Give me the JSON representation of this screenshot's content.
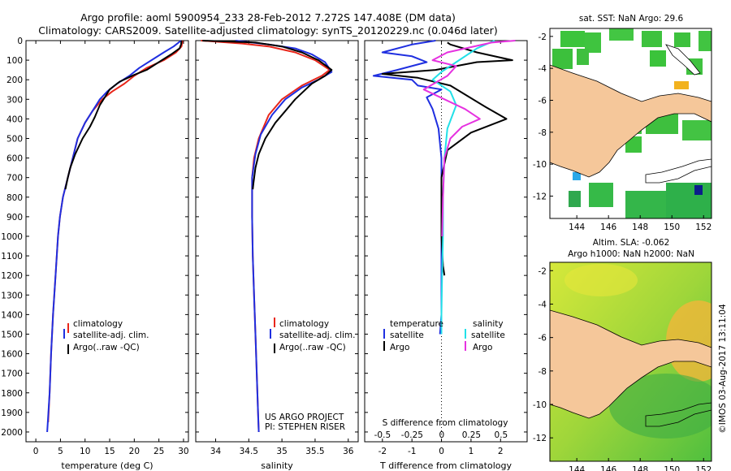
{
  "title_line1": "Argo profile: aoml 5900954_233 28-Feb-2012 7.272S 147.408E (DM data)",
  "title_line2": "Climatology: CARS2009. Satellite-adjusted climatology: synTS_20120229.nc (0.046d later)",
  "sst_title": "sat. SST: NaN Argo: 29.6",
  "sla_title1": "Altim. SLA: -0.062",
  "sla_title2": "Argo h1000: NaN h2000: NaN",
  "credit": "©IMOS 03-Aug-2017 13:11:04",
  "project_line1": "US ARGO PROJECT",
  "project_line2": "PI: STEPHEN RISER",
  "colors": {
    "climatology": "#e8261a",
    "satellite": "#1f2fe0",
    "argo": "#000000",
    "sat_s": "#22e0e8",
    "argo_s": "#e632e0",
    "land": "#f5c79a"
  },
  "chart_data": [
    {
      "type": "line",
      "name": "temperature",
      "xlabel": "temperature (deg C)",
      "xlim": [
        -2,
        31
      ],
      "xticks": [
        "0",
        "5",
        "10",
        "15",
        "20",
        "25",
        "30"
      ],
      "ylim": [
        0,
        2050
      ],
      "yticks": [
        "0",
        "100",
        "200",
        "300",
        "400",
        "500",
        "600",
        "700",
        "800",
        "900",
        "1000",
        "1100",
        "1200",
        "1300",
        "1400",
        "1500",
        "1600",
        "1700",
        "1800",
        "1900",
        "2000"
      ],
      "legend": [
        "climatology",
        "satellite-adj. clim.",
        "Argo(..raw -QC)"
      ],
      "series": [
        {
          "name": "climatology",
          "color": "#e8261a",
          "points": [
            [
              29.8,
              0
            ],
            [
              29.6,
              30
            ],
            [
              28.5,
              60
            ],
            [
              26,
              100
            ],
            [
              22.5,
              140
            ],
            [
              20,
              180
            ],
            [
              18,
              220
            ],
            [
              15.5,
              260
            ],
            [
              13.5,
              300
            ],
            [
              11.5,
              360
            ],
            [
              10,
              420
            ],
            [
              8.5,
              500
            ],
            [
              7.5,
              600
            ],
            [
              6.5,
              700
            ],
            [
              5.5,
              800
            ],
            [
              4.9,
              900
            ],
            [
              4.5,
              1000
            ],
            [
              4,
              1200
            ],
            [
              3.5,
              1400
            ],
            [
              3.1,
              1600
            ],
            [
              2.8,
              1800
            ],
            [
              2.5,
              1950
            ]
          ]
        },
        {
          "name": "satellite",
          "color": "#1f2fe0",
          "points": [
            [
              29.5,
              0
            ],
            [
              28,
              30
            ],
            [
              26,
              60
            ],
            [
              23.5,
              100
            ],
            [
              21,
              140
            ],
            [
              19,
              180
            ],
            [
              16.5,
              220
            ],
            [
              14.5,
              260
            ],
            [
              13,
              300
            ],
            [
              11.5,
              360
            ],
            [
              10,
              420
            ],
            [
              8.5,
              500
            ],
            [
              7.5,
              600
            ],
            [
              6.5,
              700
            ],
            [
              5.5,
              800
            ],
            [
              4.9,
              900
            ],
            [
              4.5,
              1000
            ],
            [
              4,
              1200
            ],
            [
              3.5,
              1400
            ],
            [
              3.1,
              1600
            ],
            [
              2.8,
              1800
            ],
            [
              2.3,
              2000
            ]
          ]
        },
        {
          "name": "argo",
          "color": "#000000",
          "points": [
            [
              29.6,
              0
            ],
            [
              29.5,
              20
            ],
            [
              29.2,
              40
            ],
            [
              27.5,
              70
            ],
            [
              25,
              110
            ],
            [
              22.5,
              150
            ],
            [
              20,
              175
            ],
            [
              17,
              210
            ],
            [
              15,
              250
            ],
            [
              14,
              290
            ],
            [
              13,
              330
            ],
            [
              12,
              390
            ],
            [
              11,
              440
            ],
            [
              9.5,
              500
            ],
            [
              8,
              580
            ],
            [
              7,
              650
            ],
            [
              6.5,
              700
            ],
            [
              6,
              760
            ]
          ]
        }
      ]
    },
    {
      "type": "line",
      "name": "salinity",
      "xlabel": "salinity",
      "xlim": [
        33.7,
        36.15
      ],
      "xticks": [
        "34",
        "34.5",
        "35",
        "35.5",
        "36"
      ],
      "ylim": [
        0,
        2050
      ],
      "legend": [
        "climatology",
        "satellite-adj. clim.",
        "Argo(..raw -QC)"
      ],
      "series": [
        {
          "name": "climatology",
          "color": "#e8261a",
          "points": [
            [
              33.78,
              0
            ],
            [
              34.0,
              5
            ],
            [
              34.4,
              15
            ],
            [
              34.8,
              30
            ],
            [
              35.2,
              60
            ],
            [
              35.5,
              100
            ],
            [
              35.72,
              150
            ],
            [
              35.6,
              180
            ],
            [
              35.3,
              230
            ],
            [
              35.0,
              300
            ],
            [
              34.8,
              380
            ],
            [
              34.65,
              500
            ],
            [
              34.58,
              600
            ],
            [
              34.55,
              700
            ],
            [
              34.55,
              900
            ],
            [
              34.56,
              1100
            ],
            [
              34.58,
              1300
            ],
            [
              34.6,
              1500
            ],
            [
              34.62,
              1700
            ],
            [
              34.64,
              1900
            ],
            [
              34.65,
              2000
            ]
          ]
        },
        {
          "name": "satellite",
          "color": "#1f2fe0",
          "points": [
            [
              34.3,
              0
            ],
            [
              34.8,
              20
            ],
            [
              35.2,
              40
            ],
            [
              35.45,
              70
            ],
            [
              35.65,
              110
            ],
            [
              35.75,
              160
            ],
            [
              35.55,
              200
            ],
            [
              35.3,
              240
            ],
            [
              35.05,
              300
            ],
            [
              34.85,
              380
            ],
            [
              34.68,
              480
            ],
            [
              34.6,
              580
            ],
            [
              34.55,
              700
            ],
            [
              34.55,
              900
            ],
            [
              34.56,
              1100
            ],
            [
              34.58,
              1300
            ],
            [
              34.6,
              1500
            ],
            [
              34.62,
              1700
            ],
            [
              34.64,
              1900
            ],
            [
              34.65,
              2000
            ]
          ]
        },
        {
          "name": "argo",
          "color": "#000000",
          "points": [
            [
              33.8,
              0
            ],
            [
              34.6,
              10
            ],
            [
              35.0,
              30
            ],
            [
              35.3,
              60
            ],
            [
              35.55,
              100
            ],
            [
              35.75,
              150
            ],
            [
              35.65,
              180
            ],
            [
              35.45,
              220
            ],
            [
              35.2,
              300
            ],
            [
              35.05,
              360
            ],
            [
              34.9,
              420
            ],
            [
              34.75,
              500
            ],
            [
              34.65,
              580
            ],
            [
              34.6,
              650
            ],
            [
              34.57,
              730
            ],
            [
              34.56,
              760
            ]
          ]
        }
      ]
    },
    {
      "type": "line",
      "name": "difference",
      "xlabel": "T difference from climatology",
      "xlabel_top": "S difference from climatology",
      "xlim": [
        -2.6,
        2.9
      ],
      "xticks": [
        "-2",
        "-1",
        "0",
        "1",
        "2"
      ],
      "xticks_s": [
        "-0.5",
        "-0.25",
        "0",
        "0.25",
        "0.5"
      ],
      "ylim": [
        0,
        2050
      ],
      "legend_t": [
        "temperature",
        "satellite",
        "Argo"
      ],
      "legend_s": [
        "salinity",
        "satellite",
        "Argo"
      ],
      "series": [
        {
          "name": "T satellite",
          "color": "#1f2fe0",
          "points": [
            [
              -0.2,
              0
            ],
            [
              -1.0,
              20
            ],
            [
              -2.0,
              60
            ],
            [
              -1.0,
              80
            ],
            [
              -0.5,
              110
            ],
            [
              -1.5,
              150
            ],
            [
              -2.3,
              180
            ],
            [
              -1.0,
              200
            ],
            [
              -0.8,
              230
            ],
            [
              0.0,
              250
            ],
            [
              -0.5,
              290
            ],
            [
              -0.3,
              350
            ],
            [
              -0.1,
              450
            ],
            [
              0,
              600
            ],
            [
              0,
              800
            ],
            [
              0,
              1000
            ],
            [
              0,
              1200
            ],
            [
              0,
              1400
            ],
            [
              -0.05,
              1500
            ]
          ]
        },
        {
          "name": "T argo",
          "color": "#000000",
          "points": [
            [
              0.2,
              10
            ],
            [
              0.3,
              20
            ],
            [
              1.2,
              60
            ],
            [
              2.4,
              100
            ],
            [
              1.2,
              110
            ],
            [
              -0.2,
              150
            ],
            [
              -2.0,
              170
            ],
            [
              -0.8,
              190
            ],
            [
              0.3,
              230
            ],
            [
              1.5,
              340
            ],
            [
              2.2,
              400
            ],
            [
              1.0,
              470
            ],
            [
              0.2,
              560
            ],
            [
              0,
              700
            ],
            [
              0,
              900
            ],
            [
              0,
              1000
            ],
            [
              0.05,
              1150
            ],
            [
              0.1,
              1200
            ]
          ]
        },
        {
          "name": "S satellite",
          "color": "#22e0e8",
          "points": [
            [
              1.8,
              0
            ],
            [
              1.2,
              40
            ],
            [
              0.5,
              110
            ],
            [
              0.0,
              160
            ],
            [
              -0.3,
              200
            ],
            [
              0.3,
              260
            ],
            [
              0.5,
              330
            ],
            [
              0.2,
              450
            ],
            [
              0.1,
              600
            ],
            [
              0.05,
              800
            ],
            [
              0.05,
              1000
            ],
            [
              0.02,
              1200
            ],
            [
              0,
              1400
            ],
            [
              0,
              1500
            ]
          ]
        },
        {
          "name": "S argo",
          "color": "#e632e0",
          "points": [
            [
              2.5,
              0
            ],
            [
              1.7,
              10
            ],
            [
              0.2,
              60
            ],
            [
              -0.3,
              100
            ],
            [
              0.5,
              130
            ],
            [
              0.2,
              180
            ],
            [
              -0.6,
              250
            ],
            [
              0.8,
              350
            ],
            [
              1.3,
              400
            ],
            [
              0.7,
              440
            ],
            [
              0.3,
              500
            ],
            [
              0.1,
              600
            ],
            [
              0.05,
              800
            ],
            [
              0.02,
              1000
            ]
          ]
        }
      ]
    }
  ],
  "maps": [
    {
      "name": "sst-map",
      "type": "heatmap",
      "xticks": [
        "144",
        "146",
        "148",
        "150",
        "152"
      ],
      "yticks": [
        "-2",
        "-4",
        "-6",
        "-8",
        "-10",
        "-12"
      ],
      "xlim": [
        142.3,
        152.5
      ],
      "ylim": [
        -13.4,
        -1.5
      ]
    },
    {
      "name": "sla-map",
      "type": "heatmap",
      "xticks": [
        "144",
        "146",
        "148",
        "150",
        "152"
      ],
      "yticks": [
        "-2",
        "-4",
        "-6",
        "-8",
        "-10",
        "-12"
      ],
      "xlim": [
        142.3,
        152.5
      ],
      "ylim": [
        -13.4,
        -1.5
      ]
    }
  ]
}
